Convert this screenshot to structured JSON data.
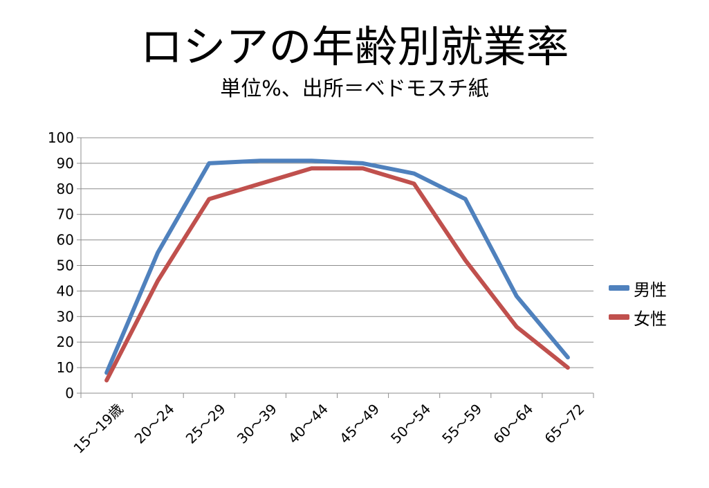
{
  "chart_data": {
    "type": "line",
    "title": "ロシアの年齢別就業率",
    "subtitle": "単位%、出所＝ベドモスチ紙",
    "categories": [
      "15～19歳",
      "20～24",
      "25～29",
      "30～39",
      "40～44",
      "45～49",
      "50～54",
      "55～59",
      "60～64",
      "65～72"
    ],
    "series": [
      {
        "name": "男性",
        "color": "#4F81BD",
        "values": [
          8,
          55,
          90,
          91,
          91,
          90,
          86,
          76,
          38,
          14
        ]
      },
      {
        "name": "女性",
        "color": "#C0504D",
        "values": [
          5,
          44,
          76,
          82,
          88,
          88,
          82,
          52,
          26,
          10
        ]
      }
    ],
    "yticks": [
      0,
      10,
      20,
      30,
      40,
      50,
      60,
      70,
      80,
      90,
      100
    ],
    "ylim": [
      0,
      100
    ],
    "grid": true,
    "legend": "right"
  }
}
